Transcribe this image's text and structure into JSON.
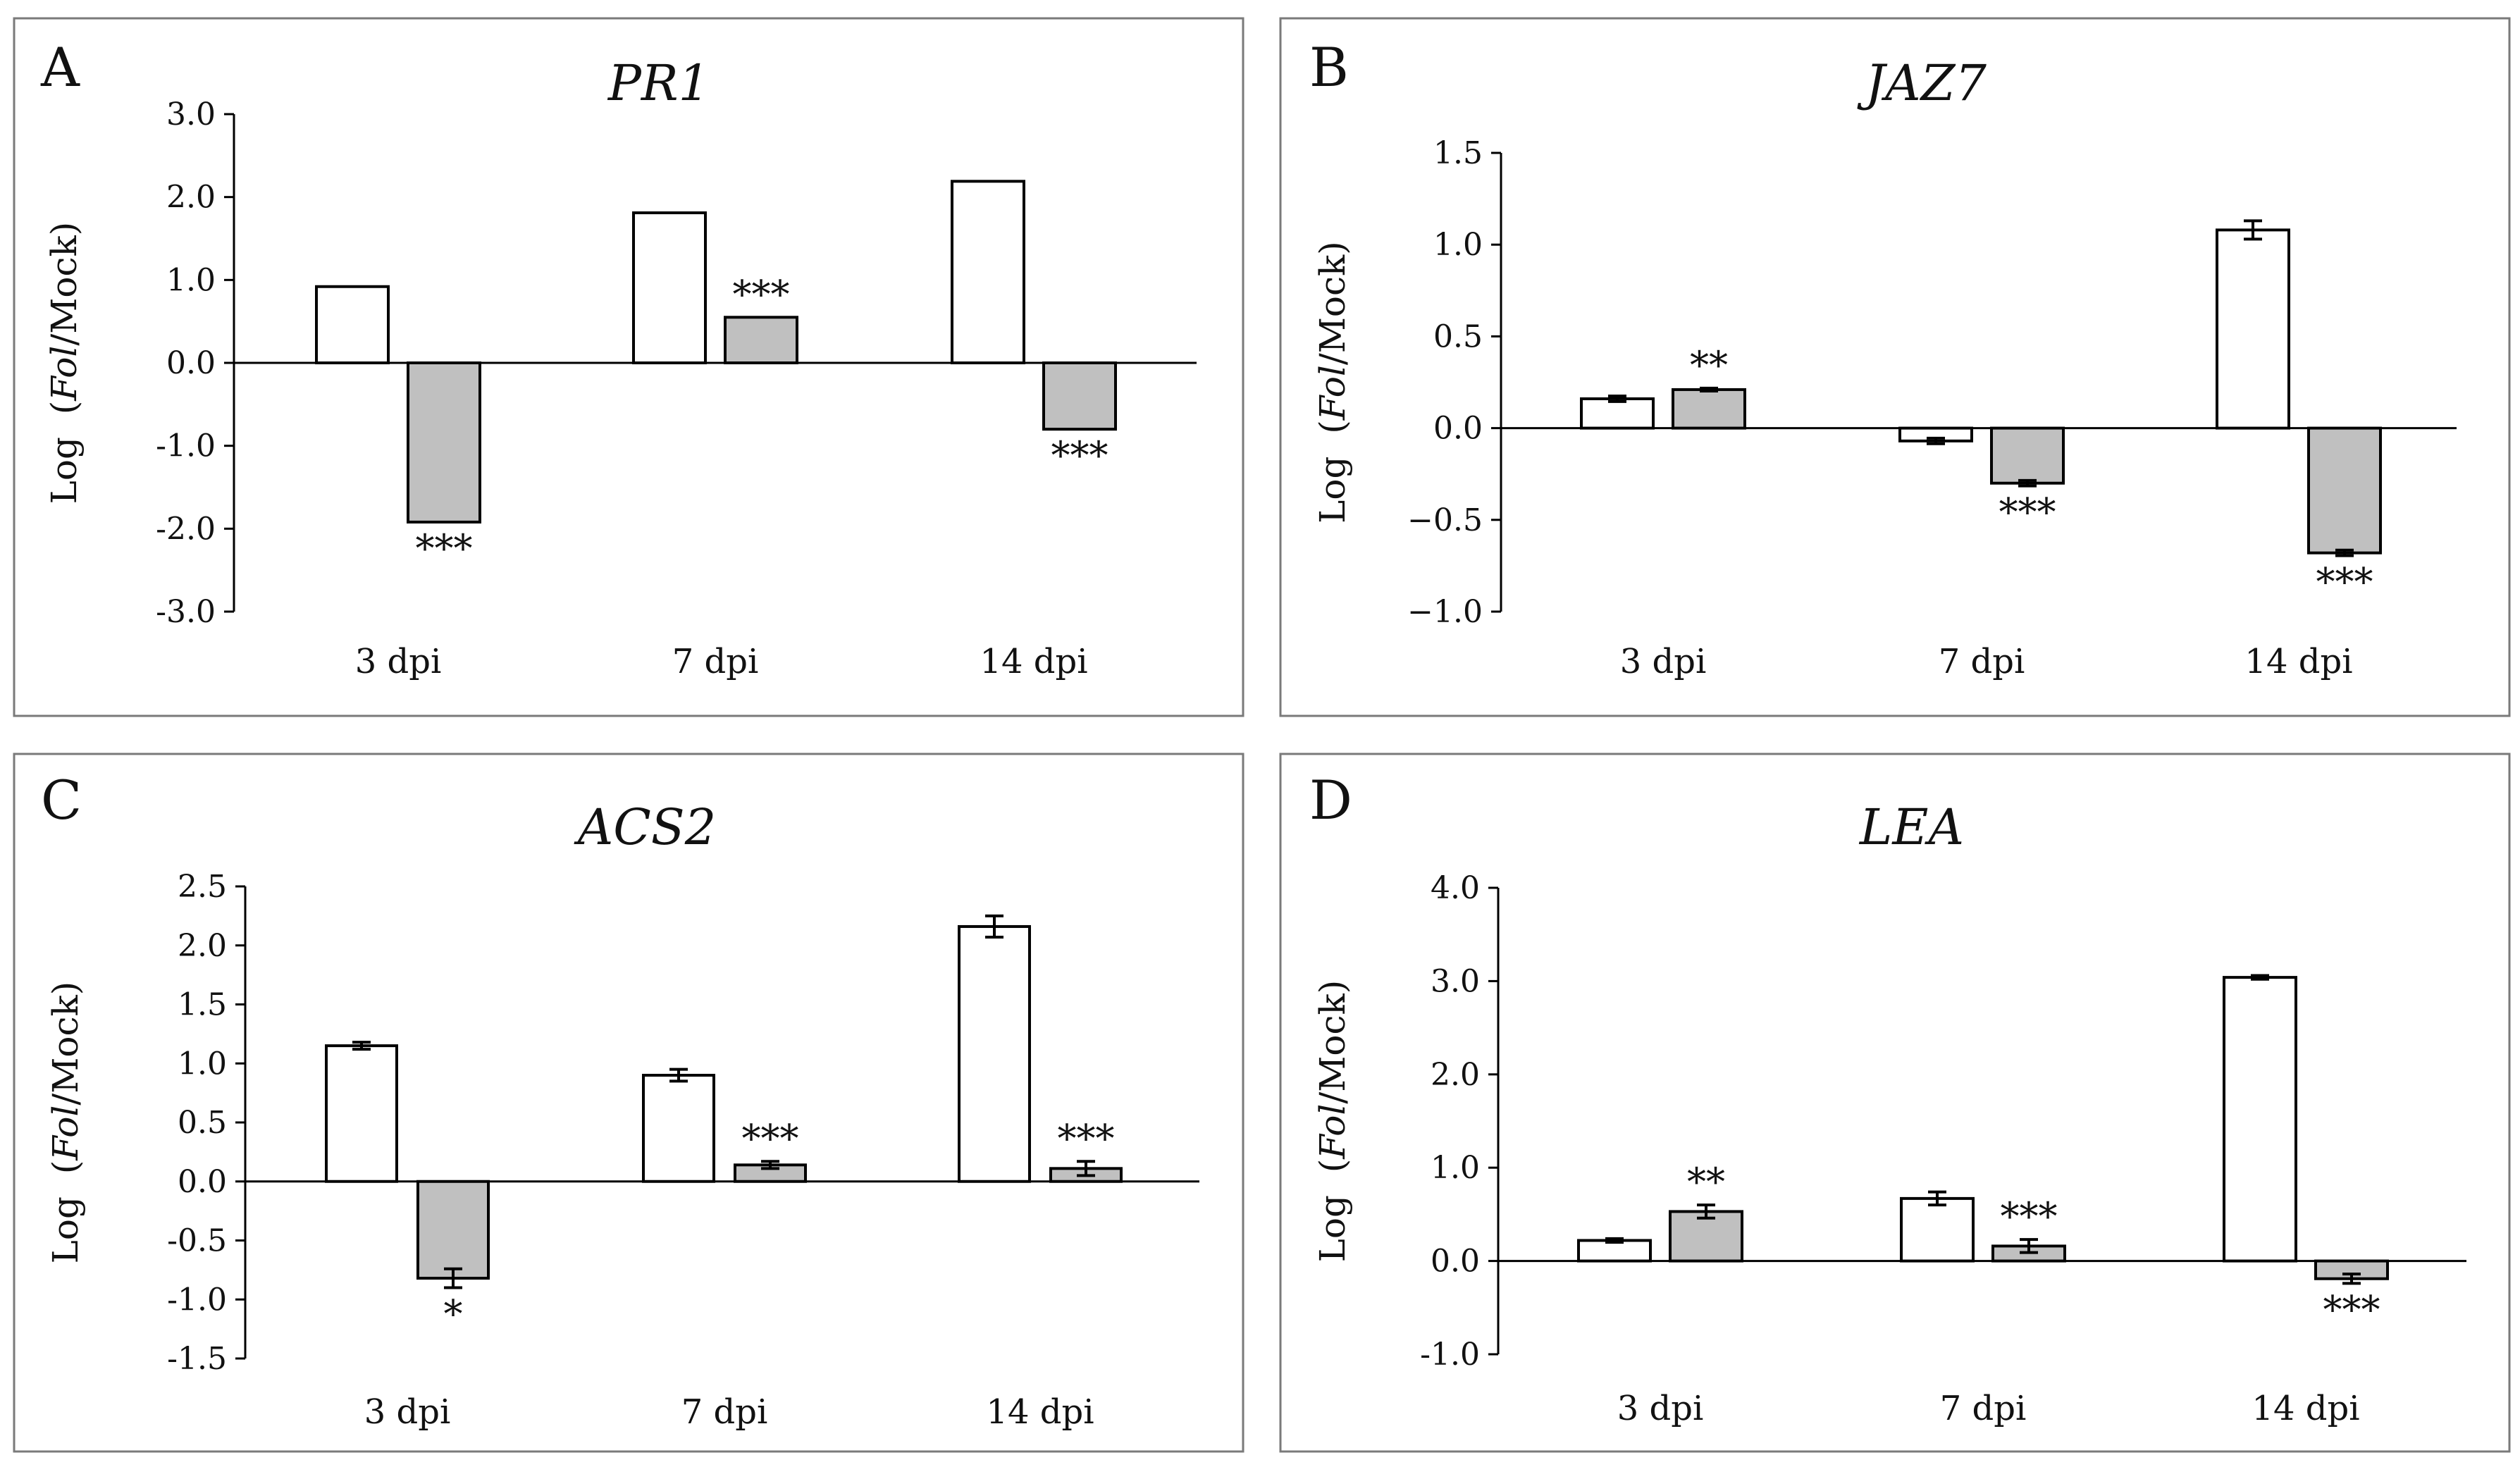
{
  "colors": {
    "mock_bar": "#ffffff",
    "treated_bar": "#c0c0c0",
    "stroke": "#000000",
    "frame": "#7a7a7a"
  },
  "chart_data": [
    {
      "panel": "A",
      "type": "bar",
      "title": "PR1",
      "ylabel_prefix": "Log",
      "ylabel_italic": "Fol",
      "ylabel_suffix": "/Mock",
      "categories": [
        "3 dpi",
        "7 dpi",
        "14 dpi"
      ],
      "ylim": [
        -3.0,
        3.0
      ],
      "yticks": [
        3.0,
        2.0,
        1.0,
        0.0,
        -1.0,
        -2.0,
        -3.0
      ],
      "ytick_labels": [
        "3.0",
        "2.0",
        "1.0",
        "0.0",
        "-1.0",
        "-2.0",
        "-3.0"
      ],
      "series": [
        {
          "color": "#ffffff",
          "values": [
            0.92,
            1.81,
            2.19
          ],
          "errors": [
            0,
            0,
            0
          ]
        },
        {
          "color": "#c0c0c0",
          "values": [
            -1.92,
            0.55,
            -0.8
          ],
          "errors": [
            0,
            0,
            0
          ]
        }
      ],
      "significance": [
        {
          "category": 0,
          "series": 1,
          "text": "***"
        },
        {
          "category": 1,
          "series": 1,
          "text": "***"
        },
        {
          "category": 2,
          "series": 1,
          "text": "***"
        }
      ],
      "grid": false
    },
    {
      "panel": "B",
      "type": "bar",
      "title": "JAZ7",
      "ylabel_prefix": "Log",
      "ylabel_italic": "Fol",
      "ylabel_suffix": "/Mock",
      "categories": [
        "3 dpi",
        "7 dpi",
        "14 dpi"
      ],
      "ylim": [
        -1.0,
        1.5
      ],
      "yticks": [
        1.5,
        1.0,
        0.5,
        0.0,
        -0.5,
        -1.0
      ],
      "ytick_labels": [
        "1.5",
        "1.0",
        "0.5",
        "0.0",
        "−0.5",
        "−1.0"
      ],
      "series": [
        {
          "color": "#ffffff",
          "values": [
            0.16,
            -0.07,
            1.08
          ],
          "errors": [
            0.015,
            0.015,
            0.05
          ]
        },
        {
          "color": "#c0c0c0",
          "values": [
            0.21,
            -0.3,
            -0.68
          ],
          "errors": [
            0.008,
            0.015,
            0.015
          ]
        }
      ],
      "significance": [
        {
          "category": 0,
          "series": 1,
          "text": "**"
        },
        {
          "category": 1,
          "series": 1,
          "text": "***"
        },
        {
          "category": 2,
          "series": 1,
          "text": "***"
        }
      ],
      "grid": false
    },
    {
      "panel": "C",
      "type": "bar",
      "title": "ACS2",
      "ylabel_prefix": "Log",
      "ylabel_italic": "Fol",
      "ylabel_suffix": "/Mock",
      "categories": [
        "3 dpi",
        "7 dpi",
        "14 dpi"
      ],
      "ylim": [
        -1.5,
        2.5
      ],
      "yticks": [
        2.5,
        2.0,
        1.5,
        1.0,
        0.5,
        0.0,
        -0.5,
        -1.0,
        -1.5
      ],
      "ytick_labels": [
        "2.5",
        "2.0",
        "1.5",
        "1.0",
        "0.5",
        "0.0",
        "-0.5",
        "-1.0",
        "-1.5"
      ],
      "series": [
        {
          "color": "#ffffff",
          "values": [
            1.15,
            0.9,
            2.16
          ],
          "errors": [
            0.03,
            0.05,
            0.09
          ]
        },
        {
          "color": "#c0c0c0",
          "values": [
            -0.82,
            0.14,
            0.11
          ],
          "errors": [
            0.08,
            0.03,
            0.06
          ]
        }
      ],
      "significance": [
        {
          "category": 0,
          "series": 1,
          "text": "*"
        },
        {
          "category": 1,
          "series": 1,
          "text": "***"
        },
        {
          "category": 2,
          "series": 1,
          "text": "***"
        }
      ],
      "grid": false
    },
    {
      "panel": "D",
      "type": "bar",
      "title": "LEA",
      "ylabel_prefix": "Log",
      "ylabel_italic": "Fol",
      "ylabel_suffix": "/Mock",
      "categories": [
        "3 dpi",
        "7 dpi",
        "14 dpi"
      ],
      "ylim": [
        -1.0,
        4.0
      ],
      "yticks": [
        4.0,
        3.0,
        2.0,
        1.0,
        0.0,
        -1.0
      ],
      "ytick_labels": [
        "4.0",
        "3.0",
        "2.0",
        "1.0",
        "0.0",
        "-1.0"
      ],
      "series": [
        {
          "color": "#ffffff",
          "values": [
            0.22,
            0.67,
            3.04
          ],
          "errors": [
            0.02,
            0.07,
            0.02
          ]
        },
        {
          "color": "#c0c0c0",
          "values": [
            0.53,
            0.16,
            -0.19
          ],
          "errors": [
            0.07,
            0.07,
            0.05
          ]
        }
      ],
      "significance": [
        {
          "category": 0,
          "series": 1,
          "text": "**"
        },
        {
          "category": 1,
          "series": 1,
          "text": "***"
        },
        {
          "category": 2,
          "series": 1,
          "text": "***"
        }
      ],
      "grid": false
    }
  ]
}
